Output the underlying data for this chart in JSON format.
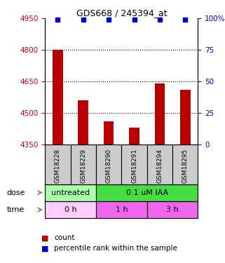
{
  "title": "GDS668 / 245394_at",
  "samples": [
    "GSM18228",
    "GSM18229",
    "GSM18290",
    "GSM18291",
    "GSM18294",
    "GSM18295"
  ],
  "bar_values": [
    4800,
    4560,
    4460,
    4430,
    4640,
    4610
  ],
  "percentile_values": [
    99,
    99,
    99,
    99,
    99,
    99
  ],
  "bar_color": "#bb0000",
  "dot_color": "#0000cc",
  "ylim_left": [
    4350,
    4950
  ],
  "ylim_right": [
    0,
    100
  ],
  "yticks_left": [
    4350,
    4500,
    4650,
    4800,
    4950
  ],
  "yticks_right": [
    0,
    25,
    50,
    75,
    100
  ],
  "dose_labels": [
    {
      "text": "untreated",
      "start": 0,
      "end": 2,
      "color": "#aaffaa"
    },
    {
      "text": "0.1 uM IAA",
      "start": 2,
      "end": 6,
      "color": "#44dd44"
    }
  ],
  "time_labels": [
    {
      "text": "0 h",
      "start": 0,
      "end": 2,
      "color": "#ffccff"
    },
    {
      "text": "1 h",
      "start": 2,
      "end": 4,
      "color": "#ee66ee"
    },
    {
      "text": "3 h",
      "start": 4,
      "end": 6,
      "color": "#ee66ee"
    }
  ],
  "dose_row_label": "dose",
  "time_row_label": "time",
  "legend_count_color": "#bb0000",
  "legend_dot_color": "#0000cc",
  "left_tick_color": "#cc0000",
  "right_tick_color": "#0000cc",
  "sample_bg_color": "#cccccc",
  "bar_width": 0.4,
  "dot_size": 5
}
